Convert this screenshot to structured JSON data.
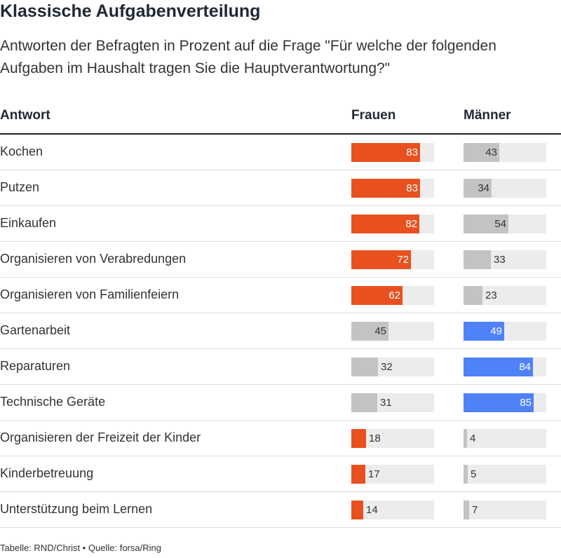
{
  "title": "Klassische Aufgabenverteilung",
  "subtitle": "Antworten der Befragten in Prozent auf die Frage \"Für welche der folgenden Aufgaben im Haushalt tragen Sie die Hauptverantwortung?\"",
  "footer": "Tabelle: RND/Christ • Quelle: forsa/Ring",
  "colors": {
    "women_highlight": "#e8511f",
    "men_highlight": "#4f82f7",
    "neutral": "#c3c3c3",
    "track": "#ececec"
  },
  "chart_data": {
    "type": "table",
    "columns": [
      "Antwort",
      "Frauen",
      "Männer"
    ],
    "xlim": [
      0,
      100
    ],
    "rows": [
      {
        "label": "Kochen",
        "frauen": 83,
        "maenner": 43
      },
      {
        "label": "Putzen",
        "frauen": 83,
        "maenner": 34
      },
      {
        "label": "Einkaufen",
        "frauen": 82,
        "maenner": 54
      },
      {
        "label": "Organisieren von Verabredungen",
        "frauen": 72,
        "maenner": 33
      },
      {
        "label": "Organisieren von Familienfeiern",
        "frauen": 62,
        "maenner": 23
      },
      {
        "label": "Gartenarbeit",
        "frauen": 45,
        "maenner": 49
      },
      {
        "label": "Reparaturen",
        "frauen": 32,
        "maenner": 84
      },
      {
        "label": "Technische Geräte",
        "frauen": 31,
        "maenner": 85
      },
      {
        "label": "Organisieren der Freizeit der Kinder",
        "frauen": 18,
        "maenner": 4
      },
      {
        "label": "Kinderbetreuung",
        "frauen": 17,
        "maenner": 5
      },
      {
        "label": "Unterstützung beim Lernen",
        "frauen": 14,
        "maenner": 7
      }
    ]
  }
}
